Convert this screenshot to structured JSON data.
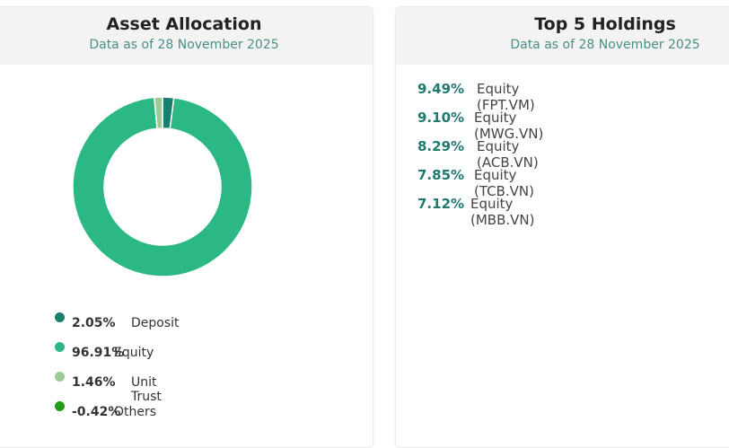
{
  "asset_allocation": {
    "title": "Asset Allocation",
    "subtitle": "Data as of 28 November 2025"
  },
  "top_holdings": {
    "title": "Top 5 Holdings",
    "subtitle": "Data as of 28 November 2025",
    "items": [
      {
        "pct": "9.49%",
        "name": "Equity (FPT.VM)"
      },
      {
        "pct": "9.10%",
        "name": "Equity (MWG.VN)"
      },
      {
        "pct": "8.29%",
        "name": "Equity (ACB.VN)"
      },
      {
        "pct": "7.85%",
        "name": "Equity (TCB.VN)"
      },
      {
        "pct": "7.12%",
        "name": "Equity (MBB.VN)"
      }
    ]
  },
  "chart_data": {
    "type": "pie",
    "donut": true,
    "title": "Asset Allocation",
    "categories": [
      "Deposit",
      "Equity",
      "Unit Trust",
      "Others"
    ],
    "values": [
      2.05,
      96.91,
      1.46,
      -0.42
    ],
    "labels": [
      "2.05%",
      "96.91%",
      "1.46%",
      "-0.42%"
    ],
    "colors": [
      "#1b7f6e",
      "#2bb884",
      "#9ccb97",
      "#1f9e1a"
    ],
    "legend": "bottom"
  }
}
